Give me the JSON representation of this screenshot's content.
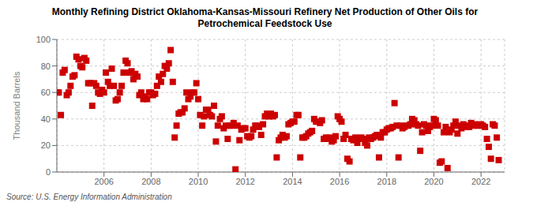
{
  "chart_data": {
    "type": "scatter",
    "title": "Monthly Refining District Oklahoma-Kansas-Missouri Refinery Net Production of Other Oils for\nPetrochemical Feedstock Use",
    "ylabel": "Thousand Barrels",
    "source": "Source: U.S. Energy Information Administration",
    "color": "#cc0000",
    "marker": "square",
    "grid": true,
    "xlim": [
      2004.0,
      2023.0
    ],
    "ylim": [
      0,
      100
    ],
    "yticks": [
      0,
      20,
      40,
      60,
      80,
      100
    ],
    "xticks": [
      2006,
      2008,
      2010,
      2012,
      2014,
      2016,
      2018,
      2020,
      2022
    ],
    "x": [
      2004.0,
      2004.08,
      2004.17,
      2004.25,
      2004.33,
      2004.42,
      2004.5,
      2004.58,
      2004.67,
      2004.75,
      2004.83,
      2004.92,
      2005.0,
      2005.08,
      2005.17,
      2005.25,
      2005.33,
      2005.42,
      2005.5,
      2005.58,
      2005.67,
      2005.75,
      2005.83,
      2005.92,
      2006.0,
      2006.08,
      2006.17,
      2006.25,
      2006.33,
      2006.42,
      2006.5,
      2006.58,
      2006.67,
      2006.75,
      2006.83,
      2006.92,
      2007.0,
      2007.08,
      2007.17,
      2007.25,
      2007.33,
      2007.42,
      2007.5,
      2007.58,
      2007.67,
      2007.75,
      2007.83,
      2007.92,
      2008.0,
      2008.08,
      2008.17,
      2008.25,
      2008.33,
      2008.42,
      2008.5,
      2008.58,
      2008.67,
      2008.75,
      2008.83,
      2008.92,
      2009.0,
      2009.08,
      2009.17,
      2009.25,
      2009.33,
      2009.42,
      2009.5,
      2009.58,
      2009.67,
      2009.75,
      2009.83,
      2009.92,
      2010.0,
      2010.08,
      2010.17,
      2010.25,
      2010.33,
      2010.42,
      2010.5,
      2010.58,
      2010.67,
      2010.75,
      2010.83,
      2010.92,
      2011.0,
      2011.08,
      2011.17,
      2011.25,
      2011.33,
      2011.42,
      2011.5,
      2011.58,
      2011.67,
      2011.75,
      2011.83,
      2011.92,
      2012.0,
      2012.08,
      2012.17,
      2012.25,
      2012.33,
      2012.42,
      2012.5,
      2012.58,
      2012.67,
      2012.75,
      2012.83,
      2012.92,
      2013.0,
      2013.08,
      2013.17,
      2013.25,
      2013.33,
      2013.42,
      2013.5,
      2013.58,
      2013.67,
      2013.75,
      2013.83,
      2013.92,
      2014.0,
      2014.08,
      2014.17,
      2014.25,
      2014.33,
      2014.42,
      2014.5,
      2014.58,
      2014.67,
      2014.75,
      2014.83,
      2014.92,
      2015.0,
      2015.08,
      2015.17,
      2015.25,
      2015.33,
      2015.42,
      2015.5,
      2015.58,
      2015.67,
      2015.75,
      2015.83,
      2015.92,
      2016.0,
      2016.08,
      2016.17,
      2016.25,
      2016.33,
      2016.42,
      2016.5,
      2016.58,
      2016.67,
      2016.75,
      2016.83,
      2016.92,
      2017.0,
      2017.08,
      2017.17,
      2017.25,
      2017.33,
      2017.42,
      2017.5,
      2017.58,
      2017.67,
      2017.75,
      2017.83,
      2017.92,
      2018.0,
      2018.08,
      2018.17,
      2018.25,
      2018.33,
      2018.42,
      2018.5,
      2018.58,
      2018.67,
      2018.75,
      2018.83,
      2018.92,
      2019.0,
      2019.08,
      2019.17,
      2019.25,
      2019.33,
      2019.42,
      2019.5,
      2019.58,
      2019.67,
      2019.75,
      2019.83,
      2019.92,
      2020.0,
      2020.08,
      2020.17,
      2020.25,
      2020.33,
      2020.42,
      2020.5,
      2020.58,
      2020.67,
      2020.75,
      2020.83,
      2020.92,
      2021.0,
      2021.08,
      2021.17,
      2021.25,
      2021.33,
      2021.42,
      2021.5,
      2021.58,
      2021.67,
      2021.75,
      2021.83,
      2021.92,
      2022.0,
      2022.08,
      2022.17,
      2022.25,
      2022.33,
      2022.42,
      2022.5,
      2022.58,
      2022.67,
      2022.75
    ],
    "values": [
      60,
      60,
      43,
      75,
      77,
      58,
      60,
      65,
      72,
      73,
      87,
      85,
      80,
      79,
      86,
      84,
      67,
      67,
      50,
      67,
      65,
      60,
      59,
      62,
      60,
      75,
      68,
      65,
      78,
      65,
      54,
      55,
      60,
      65,
      75,
      84,
      82,
      75,
      76,
      70,
      74,
      72,
      58,
      60,
      55,
      57,
      55,
      60,
      60,
      58,
      59,
      65,
      72,
      68,
      74,
      80,
      78,
      82,
      92,
      68,
      26,
      35,
      44,
      45,
      45,
      48,
      60,
      55,
      57,
      60,
      60,
      67,
      55,
      43,
      35,
      42,
      47,
      47,
      43,
      42,
      50,
      23,
      35,
      40,
      42,
      33,
      35,
      25,
      35,
      35,
      37,
      2,
      35,
      24,
      32,
      33,
      33,
      27,
      26,
      27,
      32,
      35,
      35,
      34,
      28,
      36,
      42,
      44,
      42,
      44,
      42,
      43,
      11,
      24,
      26,
      28,
      26,
      27,
      36,
      37,
      38,
      38,
      43,
      43,
      11,
      26,
      26,
      27,
      29,
      30,
      31,
      40,
      38,
      38,
      37,
      39,
      25,
      26,
      25,
      26,
      23,
      24,
      27,
      42,
      40,
      38,
      25,
      28,
      10,
      8,
      25,
      24,
      26,
      22,
      25,
      26,
      25,
      22,
      20,
      26,
      25,
      26,
      27,
      28,
      11,
      26,
      30,
      30,
      32,
      33,
      33,
      34,
      52,
      35,
      11,
      35,
      33,
      34,
      35,
      35,
      36,
      40,
      39,
      36,
      35,
      16,
      30,
      36,
      35,
      31,
      34,
      35,
      40,
      39,
      35,
      7,
      8,
      30,
      34,
      3,
      30,
      32,
      35,
      38,
      29,
      35,
      33,
      36,
      35,
      34,
      34,
      37,
      35,
      36,
      35,
      35,
      36,
      35,
      34,
      25,
      19,
      10,
      36,
      35,
      26,
      9
    ]
  }
}
